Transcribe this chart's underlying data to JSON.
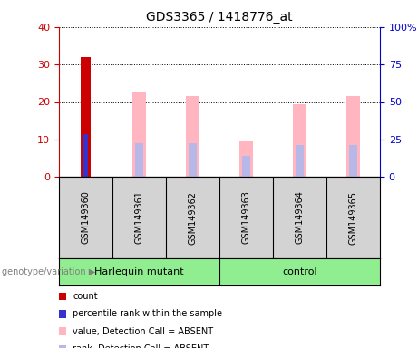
{
  "title": "GDS3365 / 1418776_at",
  "samples": [
    "GSM149360",
    "GSM149361",
    "GSM149362",
    "GSM149363",
    "GSM149364",
    "GSM149365"
  ],
  "ylim_left": [
    0,
    40
  ],
  "ylim_right": [
    0,
    100
  ],
  "yticks_left": [
    0,
    10,
    20,
    30,
    40
  ],
  "yticks_right": [
    0,
    25,
    50,
    75,
    100
  ],
  "yticklabels_right": [
    "0",
    "25",
    "50",
    "75",
    "100%"
  ],
  "count_values": [
    32,
    0,
    0,
    0,
    0,
    0
  ],
  "percentile_values": [
    11.5,
    0,
    0,
    0,
    0,
    0
  ],
  "value_absent": [
    0,
    56.25,
    53.75,
    23.75,
    48.75,
    53.75
  ],
  "rank_absent": [
    0,
    22.5,
    22.5,
    13.75,
    21.25,
    21.25
  ],
  "count_color": "#cc0000",
  "percentile_color": "#3333cc",
  "value_absent_color": "#ffb6c1",
  "rank_absent_color": "#b8b8e8",
  "left_axis_color": "#cc0000",
  "right_axis_color": "#0000cc",
  "legend_items": [
    {
      "label": "count",
      "color": "#cc0000"
    },
    {
      "label": "percentile rank within the sample",
      "color": "#3333cc"
    },
    {
      "label": "value, Detection Call = ABSENT",
      "color": "#ffb6c1"
    },
    {
      "label": "rank, Detection Call = ABSENT",
      "color": "#b8b8e8"
    }
  ],
  "sample_panel_color": "#d3d3d3",
  "group_panel_color": "#90ee90",
  "genotype_label": "genotype/variation",
  "harlequin_label": "Harlequin mutant",
  "control_label": "control"
}
